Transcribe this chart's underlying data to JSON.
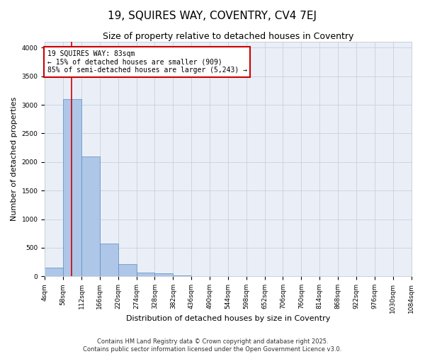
{
  "title": "19, SQUIRES WAY, COVENTRY, CV4 7EJ",
  "subtitle": "Size of property relative to detached houses in Coventry",
  "xlabel": "Distribution of detached houses by size in Coventry",
  "ylabel": "Number of detached properties",
  "bin_edges": [
    4,
    58,
    112,
    166,
    220,
    274,
    328,
    382,
    436,
    490,
    544,
    598,
    652,
    706,
    760,
    814,
    868,
    922,
    976,
    1030,
    1084
  ],
  "bar_heights": [
    150,
    3100,
    2100,
    580,
    220,
    70,
    50,
    15,
    10,
    5,
    3,
    2,
    1,
    1,
    0,
    0,
    0,
    0,
    0,
    0
  ],
  "bar_color": "#aec6e8",
  "bar_edge_color": "#5b8dc0",
  "red_line_x": 83,
  "annotation_text": "19 SQUIRES WAY: 83sqm\n← 15% of detached houses are smaller (909)\n85% of semi-detached houses are larger (5,243) →",
  "annotation_box_color": "#ffffff",
  "annotation_box_edge_color": "#cc0000",
  "ylim": [
    0,
    4100
  ],
  "yticks": [
    0,
    500,
    1000,
    1500,
    2000,
    2500,
    3000,
    3500,
    4000
  ],
  "grid_color": "#c8d0dc",
  "background_color": "#eaeff7",
  "footer_line1": "Contains HM Land Registry data © Crown copyright and database right 2025.",
  "footer_line2": "Contains public sector information licensed under the Open Government Licence v3.0.",
  "title_fontsize": 11,
  "subtitle_fontsize": 9,
  "tick_label_fontsize": 6.5,
  "axis_label_fontsize": 8,
  "footer_fontsize": 6
}
